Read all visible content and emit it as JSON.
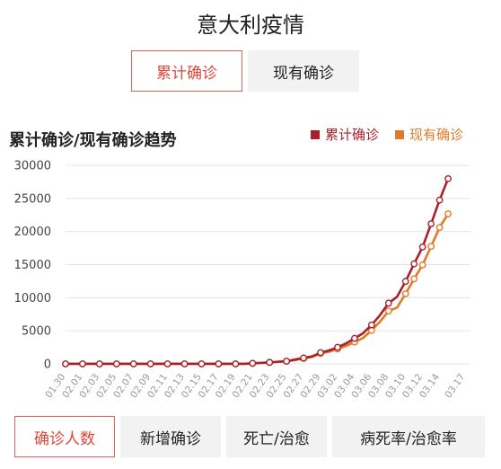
{
  "page": {
    "title": "意大利疫情",
    "tabs": [
      "累计确诊",
      "现有确诊"
    ],
    "chart_title": "累计确诊/现有确诊趋势",
    "bottom_buttons": [
      "确诊人数",
      "新增确诊",
      "死亡/治愈",
      "病死率/治愈率"
    ]
  },
  "colors": {
    "accent": "#e0463c",
    "confirmed": "#a9202c",
    "current": "#e07b2a",
    "grid": "#e4e4e4"
  },
  "chart_data": {
    "type": "line",
    "x": [
      "01.30",
      "01.31",
      "02.01",
      "02.02",
      "02.03",
      "02.04",
      "02.05",
      "02.06",
      "02.07",
      "02.08",
      "02.09",
      "02.10",
      "02.11",
      "02.12",
      "02.13",
      "02.14",
      "02.15",
      "02.16",
      "02.17",
      "02.18",
      "02.19",
      "02.20",
      "02.21",
      "02.22",
      "02.23",
      "02.24",
      "02.25",
      "02.26",
      "02.27",
      "02.28",
      "02.29",
      "03.01",
      "03.02",
      "03.03",
      "03.04",
      "03.05",
      "03.06",
      "03.07",
      "03.08",
      "03.09",
      "03.10",
      "03.11",
      "03.12",
      "03.13",
      "03.14",
      "03.15",
      "03.16",
      "03.17"
    ],
    "tick_labels": [
      "01.30",
      "02.01",
      "02.03",
      "02.05",
      "02.07",
      "02.09",
      "02.11",
      "02.13",
      "02.15",
      "02.17",
      "02.19",
      "02.21",
      "02.23",
      "02.25",
      "02.27",
      "02.29",
      "03.02",
      "03.04",
      "03.06",
      "03.08",
      "03.10",
      "03.12",
      "03.14",
      "03.17"
    ],
    "series": [
      {
        "name": "累计确诊",
        "values": [
          2,
          2,
          2,
          2,
          2,
          2,
          2,
          3,
          3,
          3,
          3,
          3,
          3,
          3,
          3,
          3,
          3,
          3,
          3,
          3,
          3,
          9,
          79,
          152,
          229,
          322,
          400,
          650,
          888,
          1128,
          1694,
          2036,
          2502,
          3089,
          3858,
          4636,
          5883,
          7375,
          9172,
          10149,
          12462,
          15113,
          17660,
          21157,
          24747,
          27980,
          null,
          null
        ]
      },
      {
        "name": "现有确诊",
        "values": [
          2,
          2,
          2,
          2,
          2,
          2,
          2,
          3,
          3,
          3,
          3,
          3,
          3,
          3,
          3,
          3,
          3,
          3,
          3,
          3,
          3,
          9,
          77,
          147,
          221,
          311,
          385,
          588,
          821,
          1049,
          1577,
          1835,
          2263,
          2706,
          3296,
          3916,
          5061,
          6387,
          7985,
          8514,
          10590,
          12839,
          14955,
          17750,
          20603,
          22667,
          null,
          null
        ]
      }
    ],
    "marker_indices": [
      0,
      2,
      4,
      6,
      8,
      10,
      12,
      14,
      16,
      18,
      20,
      22,
      24,
      26,
      28,
      30,
      32,
      34,
      36,
      38,
      40,
      41,
      42,
      43,
      44,
      45
    ],
    "ylim": [
      0,
      30000
    ],
    "yticks": [
      0,
      5000,
      10000,
      15000,
      20000,
      25000,
      30000
    ],
    "grid": true,
    "legend": "top-right"
  }
}
